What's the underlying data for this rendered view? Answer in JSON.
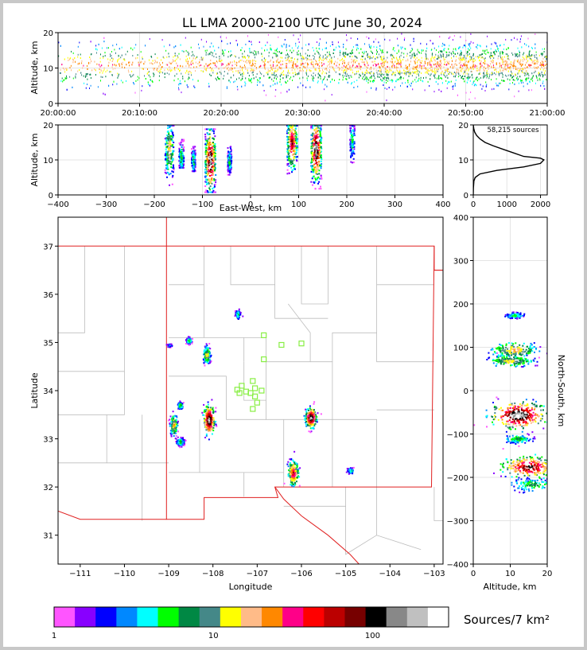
{
  "title": "LL LMA 2000-2100 UTC June 30, 2024",
  "colors": {
    "source_palette": [
      "#ff55ff",
      "#8800ff",
      "#0000ff",
      "#0088ff",
      "#00ffff",
      "#00ff00",
      "#008844",
      "#448888",
      "#ffff00",
      "#ffbb88",
      "#ff8800",
      "#ff0088",
      "#ff0000",
      "#bb0000",
      "#770000",
      "#000000",
      "#888888",
      "#c0c0c0",
      "#ffffff"
    ],
    "state_border": "#e02020",
    "county_border": "#bdbdbd",
    "station_marker": "#88ee44"
  },
  "chart_data": [
    {
      "type": "scatter",
      "panel": "altitude-time",
      "xlabel": "",
      "ylabel": "Altitude, km",
      "xlim": [
        "20:00:00",
        "21:00:00"
      ],
      "ylim": [
        0,
        20
      ],
      "xticks": [
        "20:00:00",
        "20:10:00",
        "20:20:00",
        "20:30:00",
        "20:40:00",
        "20:50:00",
        "21:00:00"
      ],
      "yticks": [
        0,
        10,
        20
      ],
      "grid": true,
      "density_profile": {
        "peak_altitude_km": 11,
        "min_altitude_km": 1,
        "max_altitude_km": 20
      }
    },
    {
      "type": "heatmap",
      "panel": "altitude-eastwest",
      "xlabel": "East-West, km",
      "ylabel": "Altitude, km",
      "xlim": [
        -400,
        400
      ],
      "ylim": [
        0,
        20
      ],
      "xticks": [
        -400,
        -300,
        -200,
        -100,
        0,
        100,
        200,
        300,
        400
      ],
      "yticks": [
        0,
        10,
        20
      ],
      "grid": true,
      "clusters": [
        {
          "ew_km": -170,
          "alt_min": 3,
          "alt_max": 20,
          "alt_peak": 13,
          "width_km": 18,
          "strength": 0.55
        },
        {
          "ew_km": -145,
          "alt_min": 8,
          "alt_max": 16,
          "alt_peak": 11,
          "width_km": 10,
          "strength": 0.4
        },
        {
          "ew_km": -120,
          "alt_min": 7,
          "alt_max": 14,
          "alt_peak": 10,
          "width_km": 8,
          "strength": 0.35
        },
        {
          "ew_km": -85,
          "alt_min": 1,
          "alt_max": 19,
          "alt_peak": 10,
          "width_km": 22,
          "strength": 1.0
        },
        {
          "ew_km": -45,
          "alt_min": 6,
          "alt_max": 14,
          "alt_peak": 10,
          "width_km": 8,
          "strength": 0.35
        },
        {
          "ew_km": 85,
          "alt_min": 4,
          "alt_max": 20,
          "alt_peak": 15,
          "width_km": 22,
          "strength": 0.8
        },
        {
          "ew_km": 135,
          "alt_min": 2,
          "alt_max": 20,
          "alt_peak": 13,
          "width_km": 22,
          "strength": 1.0
        },
        {
          "ew_km": 210,
          "alt_min": 7,
          "alt_max": 20,
          "alt_peak": 16,
          "width_km": 10,
          "strength": 0.3
        }
      ]
    },
    {
      "type": "line",
      "panel": "altitude-histogram",
      "annotation": "58,215 sources",
      "xlim": [
        0,
        2200
      ],
      "ylim": [
        0,
        20
      ],
      "xticks": [
        0,
        1000,
        2000
      ],
      "yticks": [
        0,
        10,
        20
      ],
      "grid": true,
      "x": [
        0,
        5,
        20,
        60,
        200,
        700,
        1500,
        2000,
        2100,
        2000,
        1500,
        1200,
        900,
        600,
        350,
        200,
        100,
        40,
        15,
        5,
        0
      ],
      "y": [
        0,
        2,
        4,
        5,
        6,
        7,
        8,
        9,
        10,
        10.5,
        11,
        12,
        13,
        14,
        15,
        16,
        17,
        18,
        19,
        19.7,
        20
      ]
    },
    {
      "type": "heatmap",
      "panel": "plan-view-map",
      "xlabel": "Longitude",
      "ylabel": "Latitude",
      "xlim": [
        -111.5,
        -102.8
      ],
      "ylim": [
        30.4,
        37.6
      ],
      "xticks": [
        -111,
        -110,
        -109,
        -108,
        -107,
        -106,
        -105,
        -104,
        -103
      ],
      "yticks": [
        31,
        32,
        33,
        34,
        35,
        36,
        37
      ],
      "grid": false,
      "clusters": [
        {
          "lon": -108.1,
          "lat": 33.4,
          "rlon": 0.12,
          "rlat": 0.3,
          "strength": 1.0
        },
        {
          "lon": -105.8,
          "lat": 33.45,
          "rlon": 0.12,
          "rlat": 0.2,
          "strength": 1.0
        },
        {
          "lon": -106.2,
          "lat": 32.3,
          "rlon": 0.12,
          "rlat": 0.25,
          "strength": 0.75
        },
        {
          "lon": -108.9,
          "lat": 33.3,
          "rlon": 0.08,
          "rlat": 0.22,
          "strength": 0.55
        },
        {
          "lon": -108.15,
          "lat": 34.75,
          "rlon": 0.08,
          "rlat": 0.18,
          "strength": 0.5
        },
        {
          "lon": -108.75,
          "lat": 33.7,
          "rlon": 0.06,
          "rlat": 0.07,
          "strength": 0.35
        },
        {
          "lon": -108.75,
          "lat": 32.95,
          "rlon": 0.08,
          "rlat": 0.08,
          "strength": 0.35
        },
        {
          "lon": -108.55,
          "lat": 35.05,
          "rlon": 0.06,
          "rlat": 0.06,
          "strength": 0.35
        },
        {
          "lon": -107.45,
          "lat": 35.6,
          "rlon": 0.05,
          "rlat": 0.09,
          "strength": 0.3
        },
        {
          "lon": -104.9,
          "lat": 32.35,
          "rlon": 0.07,
          "rlat": 0.06,
          "strength": 0.3
        },
        {
          "lon": -109.0,
          "lat": 34.95,
          "rlon": 0.06,
          "rlat": 0.03,
          "strength": 0.2
        }
      ],
      "stations": [
        {
          "lon": -106.85,
          "lat": 35.15
        },
        {
          "lon": -106.45,
          "lat": 34.95
        },
        {
          "lon": -106.0,
          "lat": 34.98
        },
        {
          "lon": -106.85,
          "lat": 34.65
        },
        {
          "lon": -107.1,
          "lat": 34.2
        },
        {
          "lon": -107.35,
          "lat": 34.1
        },
        {
          "lon": -107.05,
          "lat": 34.05
        },
        {
          "lon": -107.45,
          "lat": 34.02
        },
        {
          "lon": -107.25,
          "lat": 33.98
        },
        {
          "lon": -107.4,
          "lat": 33.95
        },
        {
          "lon": -106.9,
          "lat": 34.0
        },
        {
          "lon": -107.15,
          "lat": 33.95
        },
        {
          "lon": -107.05,
          "lat": 33.88
        },
        {
          "lon": -107.0,
          "lat": 33.75
        },
        {
          "lon": -107.1,
          "lat": 33.62
        }
      ]
    },
    {
      "type": "heatmap",
      "panel": "northsouth-altitude",
      "xlabel": "Altitude, km",
      "ylabel": "North-South, km",
      "xlim": [
        0,
        20
      ],
      "ylim": [
        -400,
        400
      ],
      "xticks": [
        0,
        10,
        20
      ],
      "yticks": [
        -400,
        -300,
        -200,
        -100,
        0,
        100,
        200,
        300,
        400
      ],
      "grid": true,
      "clusters": [
        {
          "ns_km": 175,
          "alt_peak": 11,
          "alt_spread": 2,
          "ns_spread": 5,
          "strength": 0.3
        },
        {
          "ns_km": 95,
          "alt_peak": 11,
          "alt_spread": 5,
          "ns_spread": 15,
          "strength": 0.55
        },
        {
          "ns_km": 70,
          "alt_peak": 10,
          "alt_spread": 5,
          "ns_spread": 10,
          "strength": 0.5
        },
        {
          "ns_km": -55,
          "alt_peak": 12,
          "alt_spread": 6,
          "ns_spread": 25,
          "strength": 1.0
        },
        {
          "ns_km": -110,
          "alt_peak": 12,
          "alt_spread": 3,
          "ns_spread": 8,
          "strength": 0.35
        },
        {
          "ns_km": -175,
          "alt_peak": 15,
          "alt_spread": 6,
          "ns_spread": 20,
          "strength": 0.85
        },
        {
          "ns_km": -215,
          "alt_peak": 16,
          "alt_spread": 5,
          "ns_spread": 12,
          "strength": 0.35
        }
      ]
    },
    {
      "type": "colorbar",
      "panel": "colorbar",
      "label": "Sources/7 km²",
      "scale": "log",
      "range": [
        1,
        300
      ],
      "tick_labels": [
        "1",
        "10",
        "100"
      ],
      "tick_values": [
        1,
        10,
        100
      ]
    }
  ]
}
